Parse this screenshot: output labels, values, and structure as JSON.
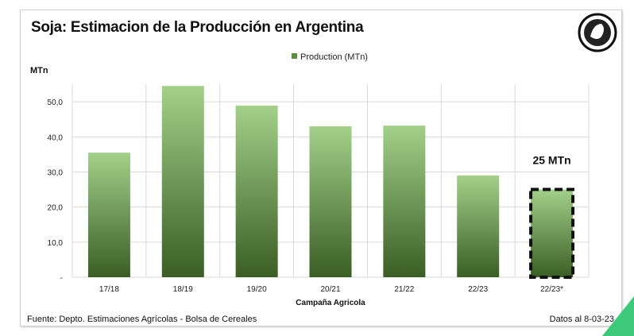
{
  "title": "Soja: Estimacion de la Producción en Argentina",
  "footer": {
    "source": "Fuente: Depto. Estimaciones Agrícolas - Bolsa de Cereales",
    "date": "Datos al 8-03-23"
  },
  "chart_data": {
    "type": "bar",
    "title": "Soja: Estimacion de la Producción en Argentina",
    "categories": [
      "17/18",
      "18/19",
      "19/20",
      "20/21",
      "21/22",
      "22/23",
      "22/23*"
    ],
    "series": [
      {
        "name": "Production (MTn)",
        "values": [
          35.5,
          54.5,
          48.9,
          43.0,
          43.2,
          29.0,
          25.0
        ]
      }
    ],
    "xlabel": "Campaña  Agricola",
    "ylabel": "MTn",
    "ylim": [
      0,
      55
    ],
    "yticks": [
      0,
      10,
      20,
      30,
      40,
      50
    ],
    "ytick_labels": [
      "-",
      "10,0",
      "20,0",
      "30,0",
      "40,0",
      "50,0"
    ],
    "legend": "top-center",
    "grid": true,
    "annotation": "25 MTn",
    "highlighted_category": "22/23*",
    "colors": {
      "bar_top": "#a3d08a",
      "bar_bottom": "#3a5e24",
      "grid": "#d9d9d9"
    }
  }
}
